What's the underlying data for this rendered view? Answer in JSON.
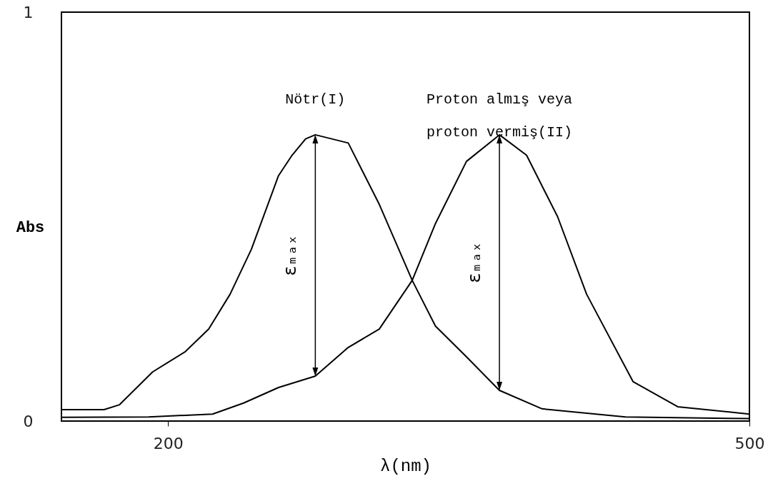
{
  "chart_data": {
    "type": "line",
    "xlabel": "λ(nm)",
    "ylabel": "Abs",
    "xlim": [
      145,
      500
    ],
    "ylim": [
      0,
      1
    ],
    "xticks": [
      200,
      500
    ],
    "yticks": [
      0,
      1
    ],
    "grid": false,
    "series": [
      {
        "name": "Nötr(I)",
        "color": "#000000",
        "x": [
          145,
          167,
          175,
          192,
          209,
          221,
          232,
          243,
          257,
          264,
          271,
          276,
          293,
          309,
          326,
          338,
          354,
          371,
          393,
          436,
          500
        ],
        "values": [
          0.028,
          0.028,
          0.04,
          0.12,
          0.17,
          0.225,
          0.31,
          0.42,
          0.6,
          0.65,
          0.69,
          0.7,
          0.68,
          0.53,
          0.344,
          0.232,
          0.157,
          0.075,
          0.03,
          0.01,
          0.006
        ]
      },
      {
        "name": "Proton almış veya\nproton vermiş(II)",
        "color": "#000000",
        "x": [
          145,
          190,
          223,
          239,
          257,
          276,
          293,
          309,
          326,
          338,
          354,
          370,
          371,
          385,
          401,
          416,
          440,
          463,
          500
        ],
        "values": [
          0.009,
          0.01,
          0.017,
          0.044,
          0.082,
          0.11,
          0.18,
          0.225,
          0.344,
          0.483,
          0.635,
          0.696,
          0.7,
          0.65,
          0.5,
          0.31,
          0.096,
          0.035,
          0.017
        ]
      }
    ],
    "annotations": [
      "εₘₐₓ",
      "εₘₐₓ"
    ]
  }
}
